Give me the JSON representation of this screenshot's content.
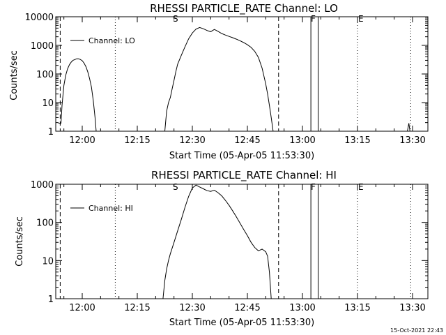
{
  "footer": {
    "timestamp": "15-Oct-2021 22:43"
  },
  "marker_labels": {
    "start": "S",
    "finish": "F",
    "end": "E"
  },
  "chart_data": [
    {
      "type": "line",
      "title": "RHESSI PARTICLE_RATE Channel: LO",
      "xlabel": "Start Time (05-Apr-05 11:53:30)",
      "ylabel": "Counts/sec",
      "yscale": "log",
      "ylim": [
        1,
        10000
      ],
      "xlim_min": [
        -6.5,
        44.5
      ],
      "x_ticks": [
        {
          "value": 0,
          "label": "12:00"
        },
        {
          "value": 15,
          "label": "12:15"
        },
        {
          "value": 30,
          "label": "12:30"
        },
        {
          "value": 45,
          "label": "12:45"
        },
        {
          "value": 60,
          "label": "13:00"
        },
        {
          "value": 75,
          "label": "13:15"
        },
        {
          "value": 90,
          "label": "13:30"
        }
      ],
      "y_ticks": [
        {
          "value": 1,
          "label": "1"
        },
        {
          "value": 10,
          "label": "10"
        },
        {
          "value": 100,
          "label": "100"
        },
        {
          "value": 1000,
          "label": "1000"
        },
        {
          "value": 10000,
          "label": "10000"
        }
      ],
      "legend": {
        "label": "Channel: LO",
        "position": "top-left"
      },
      "dashed_lines_min": [
        -6,
        53.5
      ],
      "solid_lines_min": [
        62.3,
        64.3
      ],
      "dotted_lines_min": [
        9,
        75,
        89.5
      ],
      "series": [
        {
          "name": "Channel: LO",
          "points": [
            [
              -6.5,
              1.9
            ],
            [
              -5.8,
              1.9
            ],
            [
              -5.5,
              8
            ],
            [
              -5.0,
              40
            ],
            [
              -4.5,
              90
            ],
            [
              -4.0,
              150
            ],
            [
              -3.5,
              210
            ],
            [
              -3.0,
              260
            ],
            [
              -2.5,
              300
            ],
            [
              -2.0,
              320
            ],
            [
              -1.5,
              340
            ],
            [
              -1.0,
              340
            ],
            [
              -0.5,
              320
            ],
            [
              0.0,
              290
            ],
            [
              0.5,
              240
            ],
            [
              1.0,
              180
            ],
            [
              1.5,
              120
            ],
            [
              2.0,
              70
            ],
            [
              2.5,
              35
            ],
            [
              3.0,
              12
            ],
            [
              3.5,
              3
            ],
            [
              3.8,
              1
            ]
          ]
        },
        {
          "name": "Channel: LO",
          "points": [
            [
              22.5,
              1
            ],
            [
              23.0,
              5
            ],
            [
              23.5,
              10
            ],
            [
              24.0,
              15
            ],
            [
              24.5,
              30
            ],
            [
              25.0,
              60
            ],
            [
              25.5,
              120
            ],
            [
              26.0,
              220
            ],
            [
              27.0,
              450
            ],
            [
              28.0,
              900
            ],
            [
              29.0,
              1700
            ],
            [
              30.0,
              2700
            ],
            [
              31.0,
              3700
            ],
            [
              32.0,
              4200
            ],
            [
              33.0,
              3800
            ],
            [
              34.0,
              3300
            ],
            [
              35.0,
              3000
            ],
            [
              36.0,
              3600
            ],
            [
              37.0,
              3100
            ],
            [
              38.0,
              2600
            ],
            [
              39.0,
              2300
            ],
            [
              40.0,
              2050
            ],
            [
              41.0,
              1850
            ],
            [
              42.0,
              1650
            ],
            [
              43.0,
              1450
            ],
            [
              44.0,
              1250
            ],
            [
              45.0,
              1050
            ],
            [
              46.0,
              850
            ],
            [
              47.0,
              620
            ],
            [
              48.0,
              380
            ],
            [
              49.0,
              160
            ],
            [
              50.0,
              45
            ],
            [
              50.5,
              20
            ],
            [
              51.0,
              8
            ],
            [
              51.5,
              3
            ],
            [
              52.0,
              1
            ]
          ]
        },
        {
          "name": "Channel: LO",
          "points": [
            [
              88.6,
              1
            ],
            [
              89.0,
              1.9
            ],
            [
              89.3,
              1
            ]
          ]
        }
      ]
    },
    {
      "type": "line",
      "title": "RHESSI PARTICLE_RATE Channel: HI",
      "xlabel": "Start Time (05-Apr-05 11:53:30)",
      "ylabel": "Counts/sec",
      "yscale": "log",
      "ylim": [
        1,
        1000
      ],
      "xlim_min": [
        -6.5,
        44.5
      ],
      "x_ticks": [
        {
          "value": 0,
          "label": "12:00"
        },
        {
          "value": 15,
          "label": "12:15"
        },
        {
          "value": 30,
          "label": "12:30"
        },
        {
          "value": 45,
          "label": "12:45"
        },
        {
          "value": 60,
          "label": "13:00"
        },
        {
          "value": 75,
          "label": "13:15"
        },
        {
          "value": 90,
          "label": "13:30"
        }
      ],
      "y_ticks": [
        {
          "value": 1,
          "label": "1"
        },
        {
          "value": 10,
          "label": "10"
        },
        {
          "value": 100,
          "label": "100"
        },
        {
          "value": 1000,
          "label": "1000"
        }
      ],
      "legend": {
        "label": "Channel: HI",
        "position": "top-left"
      },
      "dashed_lines_min": [
        -6,
        53.5
      ],
      "solid_lines_min": [
        62.3,
        64.3
      ],
      "dotted_lines_min": [
        9,
        75,
        89.5
      ],
      "series": [
        {
          "name": "Channel: HI",
          "points": [
            [
              22.0,
              1
            ],
            [
              22.5,
              3
            ],
            [
              23.0,
              6
            ],
            [
              23.5,
              10
            ],
            [
              24.0,
              15
            ],
            [
              25.0,
              30
            ],
            [
              26.0,
              60
            ],
            [
              27.0,
              120
            ],
            [
              28.0,
              250
            ],
            [
              29.0,
              480
            ],
            [
              30.0,
              800
            ],
            [
              31.0,
              950
            ],
            [
              32.0,
              850
            ],
            [
              33.0,
              760
            ],
            [
              34.0,
              680
            ],
            [
              35.0,
              650
            ],
            [
              36.0,
              700
            ],
            [
              37.0,
              600
            ],
            [
              38.0,
              500
            ],
            [
              39.0,
              380
            ],
            [
              40.0,
              280
            ],
            [
              41.0,
              200
            ],
            [
              42.0,
              140
            ],
            [
              43.0,
              95
            ],
            [
              44.0,
              65
            ],
            [
              45.0,
              45
            ],
            [
              46.0,
              30
            ],
            [
              47.0,
              22
            ],
            [
              48.0,
              18
            ],
            [
              49.0,
              20
            ],
            [
              50.0,
              17
            ],
            [
              50.5,
              13
            ],
            [
              51.0,
              5
            ],
            [
              51.5,
              1
            ]
          ]
        }
      ]
    }
  ]
}
